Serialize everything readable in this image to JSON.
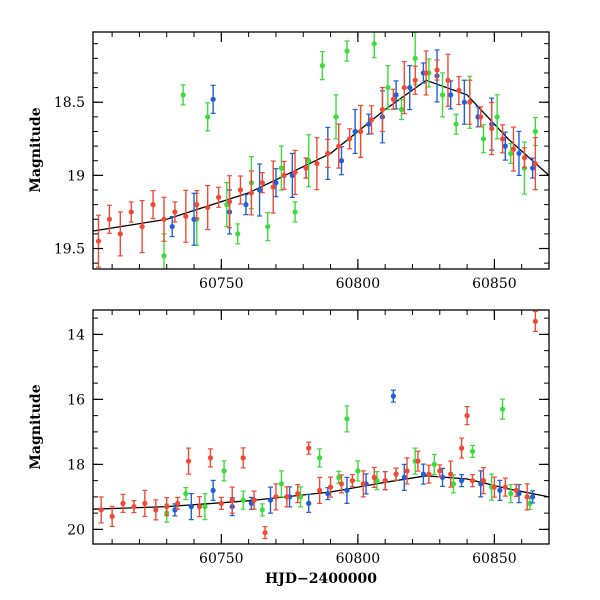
{
  "chart_data": [
    {
      "type": "scatter",
      "panel": "top",
      "xlabel": "",
      "ylabel": "Magnitude",
      "xlim": [
        60703,
        60870
      ],
      "ylim": [
        19.64,
        18.02
      ],
      "y_inverted": true,
      "xticks": [
        60750,
        60800,
        60850
      ],
      "xtick_labels": [
        "60750",
        "60800",
        "60850"
      ],
      "yticks": [
        18.5,
        19,
        19.5
      ],
      "ytick_labels": [
        "18.5",
        "19",
        "19.5"
      ],
      "series": [
        {
          "color": "#3bdc3b",
          "x": [
            60729,
            60736,
            60741,
            60745,
            60752,
            60756,
            60761,
            60767,
            60772,
            60777,
            60782,
            60787,
            60792,
            60796,
            60801,
            60806,
            60811,
            60816,
            60821,
            60826,
            60831,
            60836,
            60841,
            60846,
            60851,
            60856,
            60861,
            60865
          ],
          "y": [
            19.55,
            18.45,
            19.3,
            18.6,
            19.2,
            19.4,
            19.05,
            19.35,
            18.95,
            19.25,
            18.9,
            18.25,
            18.6,
            18.15,
            18.7,
            18.1,
            18.4,
            18.55,
            18.2,
            18.3,
            18.45,
            18.65,
            18.5,
            18.75,
            18.6,
            18.85,
            18.95,
            18.7
          ]
        },
        {
          "color": "#1f5fd9",
          "x": [
            60732,
            60740,
            60747,
            60753,
            60759,
            60764,
            60770,
            60776,
            60781,
            60789,
            60794,
            60799,
            60804,
            60809,
            60814,
            60819,
            60824,
            60829,
            60834,
            60839,
            60844,
            60849,
            60854,
            60859,
            60864
          ],
          "y": [
            19.35,
            19.3,
            18.48,
            19.25,
            19.2,
            19.1,
            19.05,
            19.0,
            18.95,
            18.85,
            18.9,
            18.7,
            18.65,
            18.6,
            18.45,
            18.4,
            18.3,
            18.32,
            18.45,
            18.5,
            18.6,
            18.65,
            18.8,
            18.85,
            18.95
          ]
        },
        {
          "color": "#f04a35",
          "x": [
            60705,
            60709,
            60713,
            60717,
            60721,
            60725,
            60729,
            60733,
            60737,
            60741,
            60745,
            60749,
            60753,
            60757,
            60761,
            60765,
            60769,
            60773,
            60777,
            60781,
            60785,
            60789,
            60793,
            60797,
            60801,
            60805,
            60809,
            60813,
            60817,
            60821,
            60825,
            60829,
            60833,
            60837,
            60841,
            60845,
            60849,
            60853,
            60857,
            60861,
            60865
          ],
          "y": [
            19.45,
            19.3,
            19.4,
            19.25,
            19.35,
            19.2,
            19.3,
            19.25,
            19.28,
            19.2,
            19.22,
            19.15,
            19.18,
            19.1,
            19.12,
            19.05,
            19.08,
            19.0,
            18.98,
            18.95,
            18.92,
            18.85,
            18.8,
            18.75,
            18.7,
            18.62,
            18.55,
            18.48,
            18.4,
            18.35,
            18.3,
            18.28,
            18.35,
            18.42,
            18.5,
            18.6,
            18.68,
            18.75,
            18.82,
            18.88,
            18.92
          ]
        }
      ],
      "fit_curve": {
        "color": "#000000",
        "x": [
          60703,
          60730,
          60760,
          60790,
          60810,
          60825,
          60840,
          60855,
          60870
        ],
        "y": [
          19.38,
          19.3,
          19.12,
          18.85,
          18.55,
          18.35,
          18.45,
          18.75,
          19.0
        ]
      }
    },
    {
      "type": "scatter",
      "panel": "bottom",
      "xlabel": "HJD−2400000",
      "ylabel": "Magnitude",
      "xlim": [
        60703,
        60870
      ],
      "ylim": [
        20.45,
        13.25
      ],
      "y_inverted": true,
      "xticks": [
        60750,
        60800,
        60850
      ],
      "xtick_labels": [
        "60750",
        "60800",
        "60850"
      ],
      "yticks": [
        14,
        16,
        18,
        20
      ],
      "ytick_labels": [
        "14",
        "16",
        "18",
        "20"
      ],
      "series": [
        {
          "color": "#3bdc3b",
          "x": [
            60730,
            60737,
            60744,
            60751,
            60758,
            60765,
            60772,
            60779,
            60786,
            60793,
            60796,
            60800,
            60807,
            60814,
            60821,
            60828,
            60835,
            60842,
            60849,
            60853,
            60856,
            60863
          ],
          "y": [
            19.5,
            18.9,
            19.3,
            18.2,
            19.1,
            19.4,
            18.6,
            19.0,
            17.8,
            18.4,
            16.6,
            18.2,
            18.5,
            18.3,
            17.9,
            18.0,
            18.6,
            17.6,
            18.7,
            16.3,
            18.9,
            19.2
          ]
        },
        {
          "color": "#1f5fd9",
          "x": [
            60733,
            60739,
            60747,
            60754,
            60761,
            60768,
            60775,
            60782,
            60789,
            60796,
            60803,
            60810,
            60813,
            60817,
            60824,
            60831,
            60838,
            60845,
            60852,
            60859,
            60864
          ],
          "y": [
            19.4,
            19.3,
            18.8,
            19.3,
            19.2,
            19.1,
            19.0,
            19.2,
            18.9,
            18.8,
            18.6,
            18.5,
            15.9,
            18.4,
            18.3,
            18.4,
            18.5,
            18.6,
            18.8,
            18.9,
            19.0
          ]
        },
        {
          "color": "#f04a35",
          "x": [
            60706,
            60710,
            60714,
            60718,
            60722,
            60726,
            60730,
            60734,
            60738,
            60742,
            60746,
            60750,
            60754,
            60758,
            60762,
            60766,
            60770,
            60774,
            60778,
            60782,
            60786,
            60790,
            60794,
            60798,
            60802,
            60806,
            60810,
            60814,
            60818,
            60822,
            60826,
            60830,
            60834,
            60838,
            60840,
            60842,
            60846,
            60850,
            60854,
            60858,
            60862,
            60865
          ],
          "y": [
            19.4,
            19.6,
            19.2,
            19.3,
            19.2,
            19.4,
            19.3,
            19.2,
            17.9,
            19.3,
            17.8,
            19.2,
            19.1,
            17.8,
            19.1,
            20.1,
            19.0,
            19.0,
            18.9,
            17.5,
            18.8,
            18.7,
            18.6,
            18.5,
            18.6,
            18.4,
            18.5,
            18.3,
            18.2,
            17.9,
            18.3,
            18.2,
            18.3,
            17.5,
            16.5,
            18.5,
            18.5,
            18.7,
            18.7,
            18.8,
            19.0,
            13.6
          ]
        }
      ],
      "fit_curve": {
        "color": "#000000",
        "x": [
          60703,
          60730,
          60760,
          60790,
          60810,
          60825,
          60840,
          60855,
          60870
        ],
        "y": [
          19.38,
          19.3,
          19.12,
          18.85,
          18.55,
          18.35,
          18.45,
          18.75,
          19.0
        ]
      }
    }
  ]
}
